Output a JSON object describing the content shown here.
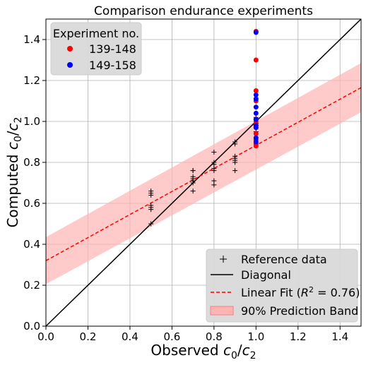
{
  "chart_data": {
    "type": "scatter",
    "title": "Comparison endurance experiments",
    "xlabel": {
      "main": "Observed ",
      "sym": "c",
      "s1": "0",
      "slash": "/",
      "sym2": "c",
      "s2": "2"
    },
    "ylabel": {
      "main": "Computed ",
      "sym": "c",
      "s1": "0",
      "slash": "/",
      "sym2": "c",
      "s2": "2"
    },
    "xlim": [
      0.0,
      1.5
    ],
    "ylim": [
      0.0,
      1.5
    ],
    "xticks": [
      "0.0",
      "0.2",
      "0.4",
      "0.6",
      "0.8",
      "1.0",
      "1.2",
      "1.4"
    ],
    "yticks": [
      "0.0",
      "0.2",
      "0.4",
      "0.6",
      "0.8",
      "1.0",
      "1.2",
      "1.4"
    ],
    "grid": true,
    "colors": {
      "series_139_148": "#ff0000",
      "series_149_158": "#0000ff",
      "reference": "#000000",
      "diagonal": "#000000",
      "fit": "#ff0000",
      "band": "#ffb3b3"
    },
    "experiment_legend": {
      "title": "Experiment no.",
      "placement": "top-left",
      "items": [
        "139-148",
        "149-158"
      ]
    },
    "main_legend": {
      "placement": "bottom-right",
      "items": {
        "reference": "Reference data",
        "diagonal": "Diagonal",
        "fit_prefix": "Linear Fit (",
        "fit_r": "R",
        "fit_exp": "2",
        "fit_suffix": " = 0.76)",
        "band": "90% Prediction Band"
      }
    },
    "series": [
      {
        "name": "139-148",
        "marker": "dot",
        "points": [
          [
            1.0,
            1.44
          ],
          [
            1.0,
            1.3
          ],
          [
            1.0,
            1.15
          ],
          [
            1.0,
            1.1
          ],
          [
            1.0,
            1.01
          ],
          [
            1.0,
            0.99
          ],
          [
            1.0,
            0.94
          ],
          [
            1.0,
            0.91
          ],
          [
            1.0,
            0.89
          ],
          [
            1.0,
            0.88
          ]
        ]
      },
      {
        "name": "149-158",
        "marker": "dot",
        "points": [
          [
            1.0,
            1.435
          ],
          [
            1.0,
            1.13
          ],
          [
            1.0,
            1.11
          ],
          [
            1.0,
            1.07
          ],
          [
            1.0,
            1.04
          ],
          [
            1.0,
            1.01
          ],
          [
            1.0,
            0.98
          ],
          [
            1.0,
            0.97
          ],
          [
            1.0,
            0.92
          ],
          [
            1.0,
            0.9
          ]
        ]
      },
      {
        "name": "Reference data",
        "marker": "plus",
        "points": [
          [
            0.5,
            0.5
          ],
          [
            0.5,
            0.57
          ],
          [
            0.5,
            0.58
          ],
          [
            0.5,
            0.59
          ],
          [
            0.5,
            0.64
          ],
          [
            0.5,
            0.65
          ],
          [
            0.5,
            0.66
          ],
          [
            0.7,
            0.66
          ],
          [
            0.7,
            0.7
          ],
          [
            0.7,
            0.71
          ],
          [
            0.7,
            0.72
          ],
          [
            0.7,
            0.73
          ],
          [
            0.7,
            0.76
          ],
          [
            0.7,
            0.76
          ],
          [
            0.8,
            0.69
          ],
          [
            0.8,
            0.71
          ],
          [
            0.8,
            0.76
          ],
          [
            0.8,
            0.77
          ],
          [
            0.8,
            0.79
          ],
          [
            0.8,
            0.8
          ],
          [
            0.8,
            0.85
          ],
          [
            0.9,
            0.76
          ],
          [
            0.9,
            0.8
          ],
          [
            0.9,
            0.81
          ],
          [
            0.9,
            0.82
          ],
          [
            0.9,
            0.83
          ],
          [
            0.9,
            0.89
          ],
          [
            0.9,
            0.9
          ],
          [
            1.0,
            0.95
          ],
          [
            1.0,
            0.97
          ],
          [
            1.0,
            0.98
          ],
          [
            1.0,
            0.99
          ],
          [
            1.0,
            1.0
          ],
          [
            1.0,
            1.01
          ],
          [
            1.0,
            1.02
          ]
        ]
      }
    ],
    "diagonal": {
      "x": [
        0.0,
        1.5
      ],
      "y": [
        0.0,
        1.5
      ]
    },
    "linear_fit": {
      "x": [
        0.0,
        1.5
      ],
      "y": [
        0.32,
        1.165
      ]
    },
    "prediction_band": {
      "x": [
        0.0,
        1.5
      ],
      "lower": [
        0.205,
        1.045
      ],
      "upper": [
        0.435,
        1.285
      ]
    }
  }
}
